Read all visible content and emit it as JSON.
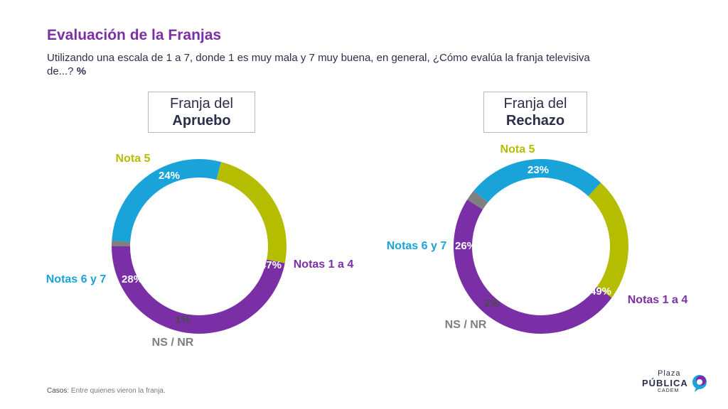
{
  "title": "Evaluación de la Franjas",
  "subtitle": "Utilizando una escala de 1 a 7, donde 1 es muy mala y 7 muy buena, en general, ¿Cómo evalúa la franja televisiva de...?",
  "subtitle_unit": "%",
  "footnote": {
    "label": "Casos",
    "text": ": Entre quienes vieron la franja."
  },
  "logo": {
    "line1": "Plaza",
    "line2": "PÚBLICA",
    "line3": "CADEM"
  },
  "colors": {
    "notas_1_4": "#7b2fa6",
    "notas_6_7": "#1aa3d9",
    "nota_5": "#b5bd00",
    "ns_nr": "#7f7f7f",
    "title": "#7b2fa6",
    "text": "#2b2f4a"
  },
  "chart_data": [
    {
      "type": "pie",
      "variant": "donut",
      "panel_label": {
        "line1": "Franja del",
        "line2": "Apruebo"
      },
      "categories": [
        "Notas 1 a 4",
        "NS / NR",
        "Notas 6 y 7",
        "Nota 5"
      ],
      "values": [
        47,
        1,
        28,
        24
      ],
      "value_labels": [
        "47%",
        "1%",
        "28%",
        "24%"
      ],
      "unit": "%"
    },
    {
      "type": "pie",
      "variant": "donut",
      "panel_label": {
        "line1": "Franja del",
        "line2": "Rechazo"
      },
      "categories": [
        "Notas 1 a 4",
        "NS / NR",
        "Notas 6 y 7",
        "Nota 5"
      ],
      "values": [
        49,
        2,
        26,
        23
      ],
      "value_labels": [
        "49%",
        "2%",
        "26%",
        "23%"
      ],
      "unit": "%"
    }
  ]
}
